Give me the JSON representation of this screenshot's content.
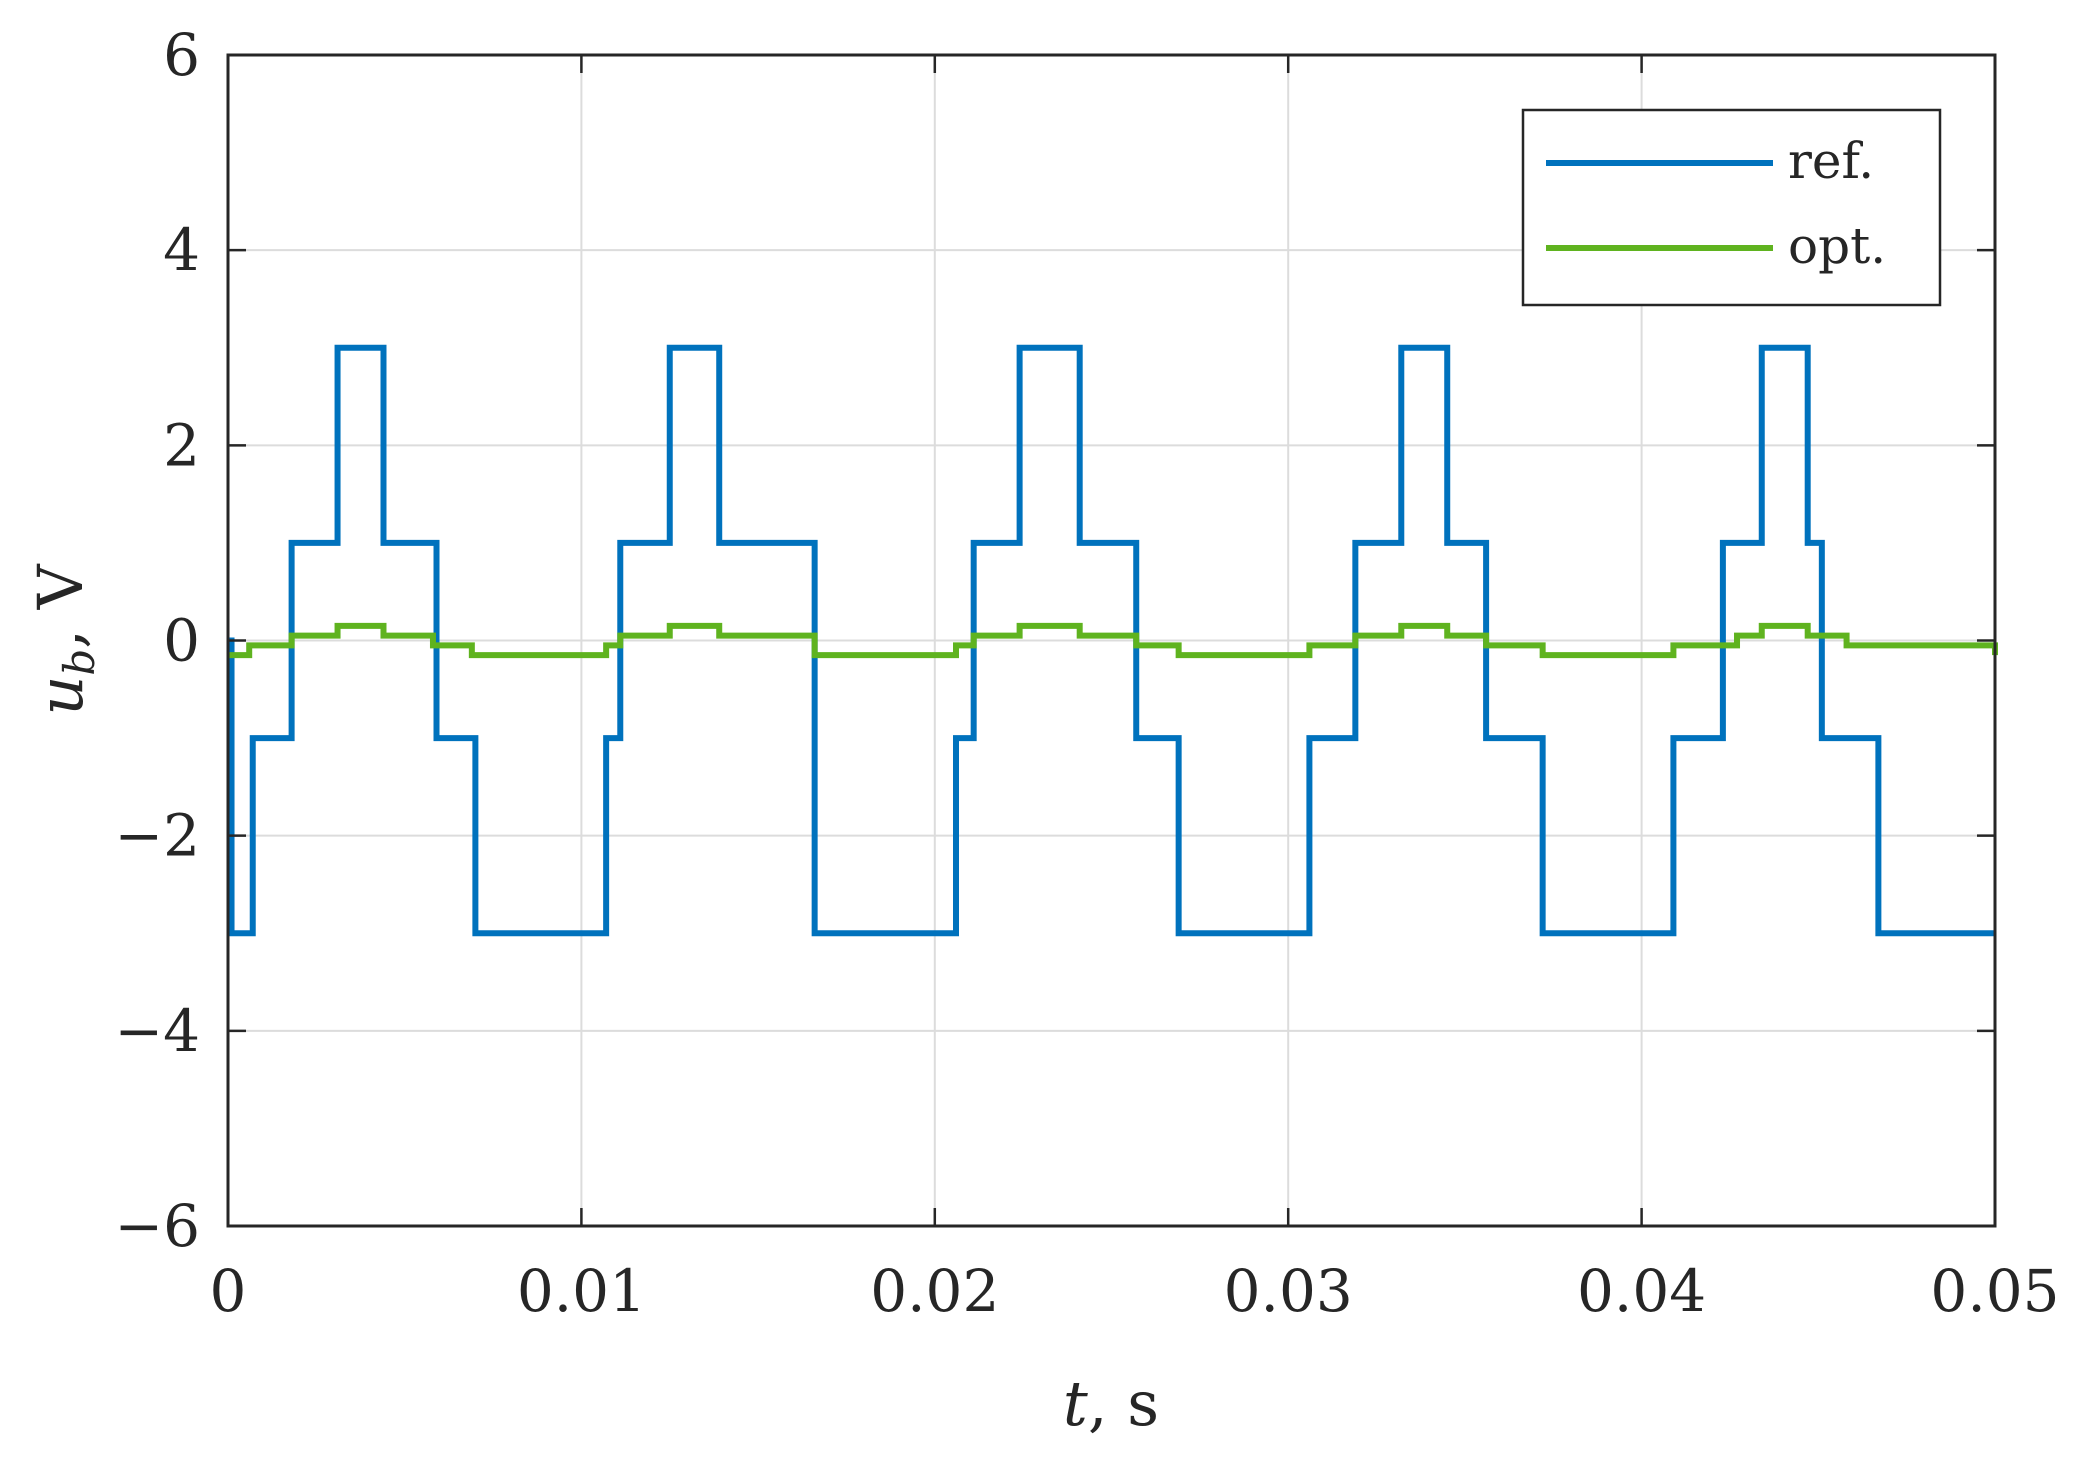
{
  "chart_data": {
    "type": "line",
    "title": "",
    "xlabel": {
      "var": "t",
      "rest": ", s"
    },
    "ylabel": {
      "var": "u",
      "sub": "b",
      "rest": ", V"
    },
    "xlim": [
      0,
      0.05
    ],
    "ylim": [
      -6,
      6
    ],
    "xticks": [
      0,
      0.01,
      0.02,
      0.03,
      0.04,
      0.05
    ],
    "xtick_labels": [
      "0",
      "0.01",
      "0.02",
      "0.03",
      "0.04",
      "0.05"
    ],
    "yticks": [
      6,
      4,
      2,
      0,
      -2,
      -4,
      -6
    ],
    "ytick_labels": [
      "6",
      "4",
      "2",
      "0",
      "−2",
      "−4",
      "−6"
    ],
    "grid": true,
    "legend_position": "top-right",
    "series": [
      {
        "name": "ref.",
        "color": "#0072BD",
        "step": "post",
        "x": [
          0,
          0.0001,
          0.0007,
          0.0018,
          0.0031,
          0.0044,
          0.0059,
          0.0064,
          0.007,
          0.0107,
          0.011,
          0.0111,
          0.0125,
          0.0139,
          0.0166,
          0.0206,
          0.0209,
          0.0211,
          0.0224,
          0.0241,
          0.0257,
          0.0262,
          0.0269,
          0.0306,
          0.0319,
          0.0332,
          0.0345,
          0.0356,
          0.0372,
          0.0409,
          0.0423,
          0.0427,
          0.0434,
          0.0447,
          0.0451,
          0.0467,
          0.05
        ],
        "values": [
          0,
          -3,
          -1,
          1,
          3,
          1,
          -1,
          -1,
          -3,
          -1,
          -1,
          1,
          3,
          1,
          -3,
          -1,
          -1,
          1,
          3,
          1,
          -1,
          -1,
          -3,
          -1,
          1,
          3,
          1,
          -1,
          -3,
          -1,
          1,
          1,
          3,
          1,
          -1,
          -3,
          -3
        ]
      },
      {
        "name": "opt.",
        "color": "#5FB31F",
        "step": "post",
        "x": [
          0,
          0.0006,
          0.0018,
          0.0031,
          0.0044,
          0.0058,
          0.0069,
          0.0107,
          0.0111,
          0.0125,
          0.0139,
          0.0166,
          0.0206,
          0.0211,
          0.0224,
          0.0241,
          0.0257,
          0.0269,
          0.0306,
          0.0319,
          0.0332,
          0.0345,
          0.0356,
          0.0372,
          0.0409,
          0.0427,
          0.0434,
          0.0447,
          0.0458,
          0.05
        ],
        "values": [
          -0.15,
          -0.05,
          0.05,
          0.15,
          0.05,
          -0.05,
          -0.15,
          -0.05,
          0.05,
          0.15,
          0.05,
          -0.15,
          -0.05,
          0.05,
          0.15,
          0.05,
          -0.05,
          -0.15,
          -0.05,
          0.05,
          0.15,
          0.05,
          -0.05,
          -0.15,
          -0.05,
          0.05,
          0.15,
          0.05,
          -0.05,
          -0.15
        ]
      }
    ]
  }
}
